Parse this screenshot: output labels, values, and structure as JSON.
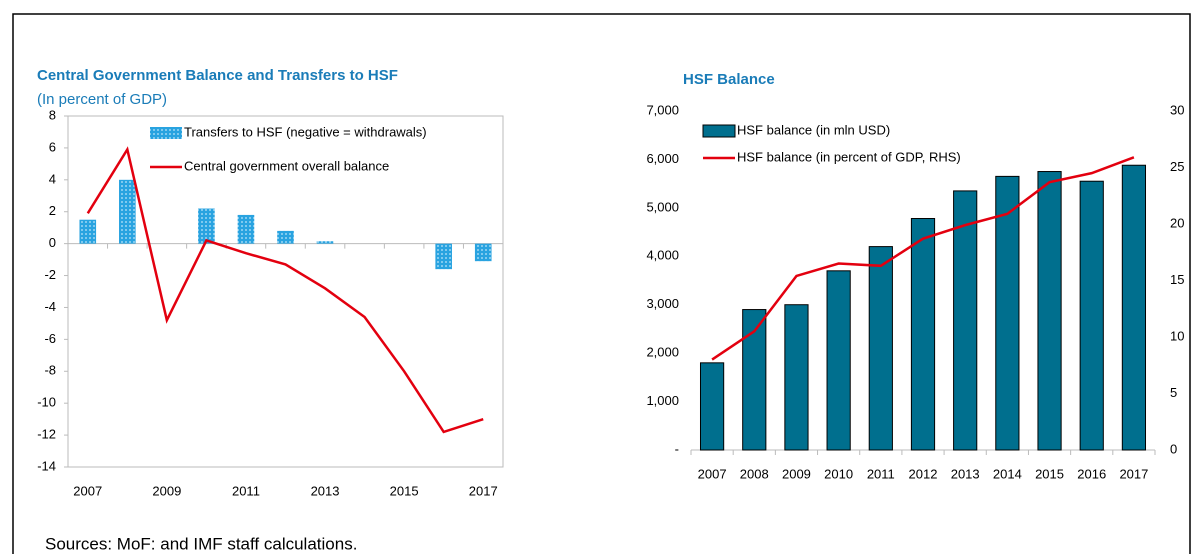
{
  "chart_data": [
    {
      "type": "combo",
      "title": "Central Government Balance and Transfers to HSF",
      "subtitle": "(In percent of GDP)",
      "categories": [
        "2007",
        null,
        "2009",
        null,
        "2011",
        null,
        "2013",
        null,
        "2015",
        null,
        "2017"
      ],
      "series": [
        {
          "name": "Transfers to HSF (negative = withdrawals)",
          "type": "bar",
          "color": "#29a3e0",
          "values": [
            1.5,
            4.0,
            0,
            2.2,
            1.8,
            0.8,
            0.15,
            0,
            0,
            -1.6,
            -1.1
          ]
        },
        {
          "name": "Central government overall balance",
          "type": "line",
          "color": "#e3000f",
          "values": [
            1.9,
            5.9,
            -4.8,
            0.2,
            -0.6,
            -1.3,
            -2.8,
            -4.6,
            -8.0,
            -11.8,
            -11.0
          ]
        }
      ],
      "ylim": [
        -14,
        8
      ],
      "yticks": [
        -14,
        -12,
        -10,
        -8,
        -6,
        -4,
        -2,
        0,
        2,
        4,
        6,
        8
      ],
      "grid": false,
      "legend": "upper right"
    },
    {
      "type": "combo",
      "title": "HSF Balance",
      "categories": [
        "2007",
        "2008",
        "2009",
        "2010",
        "2011",
        "2012",
        "2013",
        "2014",
        "2015",
        "2016",
        "2017"
      ],
      "series": [
        {
          "name": "HSF balance (in mln USD)",
          "type": "bar",
          "color": "#006f8e",
          "values": [
            1800,
            2900,
            3000,
            3700,
            4200,
            4780,
            5350,
            5650,
            5750,
            5550,
            5880
          ]
        },
        {
          "name": "HSF balance (in percent of GDP, RHS)",
          "type": "line",
          "color": "#e3000f",
          "axis": "y2",
          "values": [
            8.0,
            10.5,
            15.4,
            16.5,
            16.3,
            18.7,
            19.9,
            20.9,
            23.7,
            24.5,
            25.9
          ]
        }
      ],
      "ylim": [
        0,
        7000
      ],
      "yticks": [
        {
          "value": 0,
          "label": "-"
        },
        {
          "value": 1000,
          "label": "1,000"
        },
        {
          "value": 2000,
          "label": "2,000"
        },
        {
          "value": 3000,
          "label": "3,000"
        },
        {
          "value": 4000,
          "label": "4,000"
        },
        {
          "value": 5000,
          "label": "5,000"
        },
        {
          "value": 6000,
          "label": "6,000"
        },
        {
          "value": 7000,
          "label": "7,000"
        }
      ],
      "y2lim": [
        0,
        30
      ],
      "y2ticks": [
        0,
        5,
        10,
        15,
        20,
        25,
        30
      ],
      "grid": false,
      "legend": "upper left"
    }
  ],
  "footnote": "Sources: MoF: and IMF staff calculations."
}
